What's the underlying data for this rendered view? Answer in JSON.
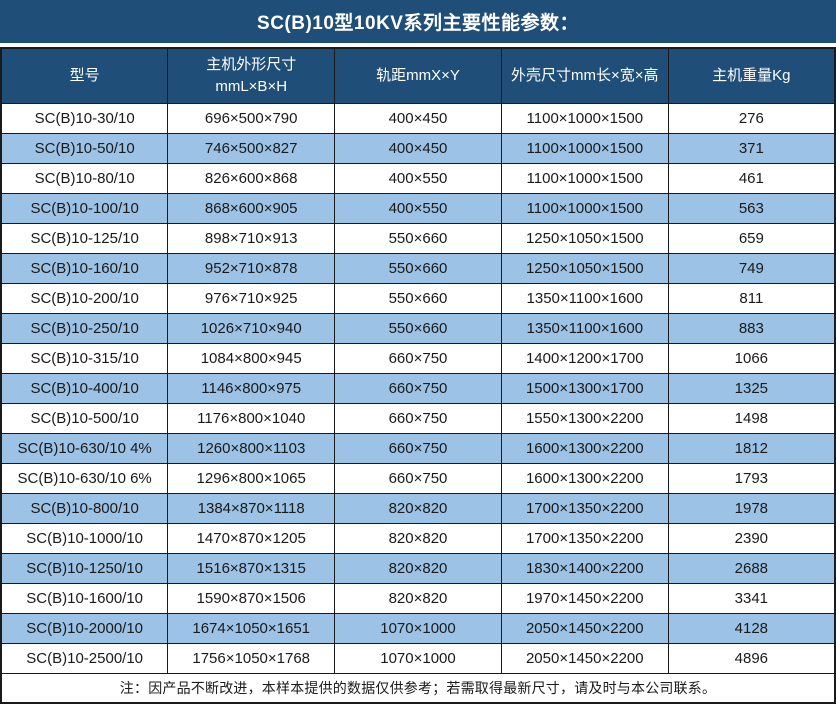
{
  "title": "SC(B)10型10KV系列主要性能参数：",
  "colors": {
    "title_header_bg": "#1F4E79",
    "alt_row_bg": "#9CC2E5",
    "row_bg": "#FFFFFF",
    "border": "#1A1A1A",
    "header_text": "#FFFFFF",
    "body_text": "#1A1A1A"
  },
  "table": {
    "columns": [
      "型号",
      "主机外形尺寸\nmmL×B×H",
      "轨距mmX×Y",
      "外壳尺寸mm长×宽×高",
      "主机重量Kg"
    ],
    "rows": [
      [
        "SC(B)10-30/10",
        "696×500×790",
        "400×450",
        "1100×1000×1500",
        "276"
      ],
      [
        "SC(B)10-50/10",
        "746×500×827",
        "400×450",
        "1100×1000×1500",
        "371"
      ],
      [
        "SC(B)10-80/10",
        "826×600×868",
        "400×550",
        "1100×1000×1500",
        "461"
      ],
      [
        "SC(B)10-100/10",
        "868×600×905",
        "400×550",
        "1100×1000×1500",
        "563"
      ],
      [
        "SC(B)10-125/10",
        "898×710×913",
        "550×660",
        "1250×1050×1500",
        "659"
      ],
      [
        "SC(B)10-160/10",
        "952×710×878",
        "550×660",
        "1250×1050×1500",
        "749"
      ],
      [
        "SC(B)10-200/10",
        "976×710×925",
        "550×660",
        "1350×1100×1600",
        "811"
      ],
      [
        "SC(B)10-250/10",
        "1026×710×940",
        "550×660",
        "1350×1100×1600",
        "883"
      ],
      [
        "SC(B)10-315/10",
        "1084×800×945",
        "660×750",
        "1400×1200×1700",
        "1066"
      ],
      [
        "SC(B)10-400/10",
        "1146×800×975",
        "660×750",
        "1500×1300×1700",
        "1325"
      ],
      [
        "SC(B)10-500/10",
        "1176×800×1040",
        "660×750",
        "1550×1300×2200",
        "1498"
      ],
      [
        "SC(B)10-630/10 4%",
        "1260×800×1103",
        "660×750",
        "1600×1300×2200",
        "1812"
      ],
      [
        "SC(B)10-630/10 6%",
        "1296×800×1065",
        "660×750",
        "1600×1300×2200",
        "1793"
      ],
      [
        "SC(B)10-800/10",
        "1384×870×1118",
        "820×820",
        "1700×1350×2200",
        "1978"
      ],
      [
        "SC(B)10-1000/10",
        "1470×870×1205",
        "820×820",
        "1700×1350×2200",
        "2390"
      ],
      [
        "SC(B)10-1250/10",
        "1516×870×1315",
        "820×820",
        "1830×1400×2200",
        "2688"
      ],
      [
        "SC(B)10-1600/10",
        "1590×870×1506",
        "820×820",
        "1970×1450×2200",
        "3341"
      ],
      [
        "SC(B)10-2000/10",
        "1674×1050×1651",
        "1070×1000",
        "2050×1450×2200",
        "4128"
      ],
      [
        "SC(B)10-2500/10",
        "1756×1050×1768",
        "1070×1000",
        "2050×1450×2200",
        "4896"
      ]
    ]
  },
  "note": "注：因产品不断改进，本样本提供的数据仅供参考；若需取得最新尺寸，请及时与本公司联系。"
}
